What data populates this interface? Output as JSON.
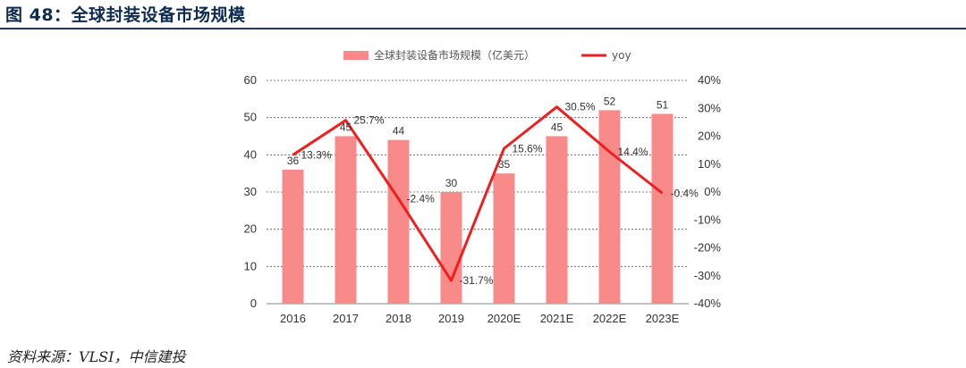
{
  "header": {
    "title": "图 48：全球封装设备市场规模"
  },
  "footer": {
    "source": "资料来源：VLSI，中信建投"
  },
  "colors": {
    "bar": "#f98a8a",
    "line": "#ef1f1f",
    "grid": "#555555",
    "title_rule": "#1f3864"
  },
  "chart_data": {
    "type": "bar",
    "title": "",
    "categories": [
      "2016",
      "2017",
      "2018",
      "2019",
      "2020E",
      "2021E",
      "2022E",
      "2023E"
    ],
    "series": [
      {
        "name": "全球封装设备市场规模（亿美元）",
        "type": "bar",
        "axis": "left",
        "values": [
          36,
          45,
          44,
          30,
          35,
          45,
          52,
          51
        ],
        "labels": [
          "36",
          "45",
          "44",
          "30",
          "35",
          "45",
          "52",
          "51"
        ]
      },
      {
        "name": "yoy",
        "type": "line",
        "axis": "right",
        "values": [
          13.3,
          25.7,
          -2.4,
          -31.7,
          15.6,
          30.5,
          14.4,
          -0.4
        ],
        "labels": [
          "13.3%",
          "25.7%",
          "-2.4%",
          "-31.7%",
          "15.6%",
          "30.5%",
          "14.4%",
          "-0.4%"
        ]
      }
    ],
    "y_left": {
      "min": 0,
      "max": 60,
      "ticks": [
        "0",
        "10",
        "20",
        "30",
        "40",
        "50",
        "60"
      ]
    },
    "y_right": {
      "min": -40,
      "max": 40,
      "ticks": [
        "-40%",
        "-30%",
        "-20%",
        "-10%",
        "0%",
        "10%",
        "20%",
        "30%",
        "40%"
      ]
    },
    "grid": "horizontal dashed",
    "legend": "top-center"
  }
}
